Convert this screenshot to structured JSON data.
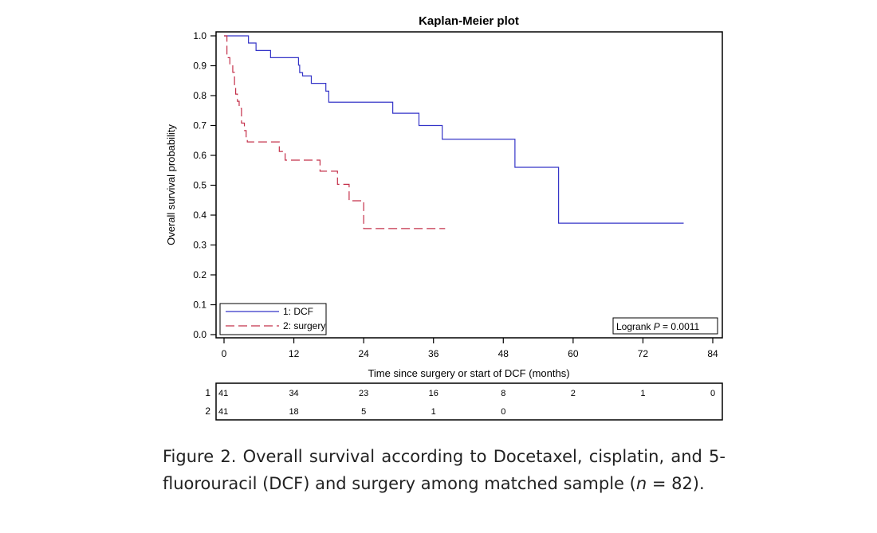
{
  "chart_data": {
    "type": "line",
    "title": "Kaplan-Meier plot",
    "xlabel": "Time since surgery or start of DCF (months)",
    "ylabel": "Overall survival probability",
    "xlim": [
      0,
      84
    ],
    "ylim": [
      0,
      1.0
    ],
    "x_ticks": [
      "0",
      "12",
      "24",
      "36",
      "48",
      "60",
      "72",
      "84"
    ],
    "x_tick_values": [
      0,
      12,
      24,
      36,
      48,
      60,
      72,
      84
    ],
    "y_ticks": [
      "0.0",
      "0.1",
      "0.2",
      "0.3",
      "0.4",
      "0.5",
      "0.6",
      "0.7",
      "0.8",
      "0.9",
      "1.0"
    ],
    "y_tick_values": [
      0,
      0.1,
      0.2,
      0.3,
      0.4,
      0.5,
      0.6,
      0.7,
      0.8,
      0.9,
      1.0
    ],
    "legend_position": "bottom-left",
    "series": [
      {
        "name": "1: DCF",
        "color": "#3535c8",
        "dash": "solid",
        "steps": [
          [
            0,
            1.0
          ],
          [
            4.2,
            0.976
          ],
          [
            5.5,
            0.951
          ],
          [
            8.0,
            0.927
          ],
          [
            12.8,
            0.902
          ],
          [
            13.0,
            0.877
          ],
          [
            13.5,
            0.866
          ],
          [
            15.0,
            0.841
          ],
          [
            17.5,
            0.815
          ],
          [
            18.0,
            0.778
          ],
          [
            29.0,
            0.741
          ],
          [
            33.5,
            0.7
          ],
          [
            37.5,
            0.654
          ],
          [
            50.0,
            0.56
          ],
          [
            57.5,
            0.373
          ]
        ],
        "end_x": 79.0
      },
      {
        "name": "2: surgery",
        "color": "#c4304a",
        "dash": "dashed",
        "steps": [
          [
            0,
            1.0
          ],
          [
            0.5,
            0.927
          ],
          [
            1.0,
            0.902
          ],
          [
            1.5,
            0.878
          ],
          [
            1.8,
            0.829
          ],
          [
            2.0,
            0.805
          ],
          [
            2.3,
            0.781
          ],
          [
            2.6,
            0.757
          ],
          [
            3.0,
            0.708
          ],
          [
            3.5,
            0.683
          ],
          [
            3.8,
            0.66
          ],
          [
            4.0,
            0.645
          ],
          [
            9.5,
            0.613
          ],
          [
            10.5,
            0.584
          ],
          [
            16.5,
            0.547
          ],
          [
            19.5,
            0.503
          ],
          [
            21.5,
            0.448
          ],
          [
            24.0,
            0.355
          ]
        ],
        "end_x": 38.0
      }
    ],
    "annotation": {
      "prefix": "Logrank ",
      "italic": "P",
      "suffix": " = 0.0011"
    },
    "risk_table": {
      "times": [
        0,
        12,
        24,
        36,
        48,
        60,
        72,
        84
      ],
      "rows": [
        {
          "label": "1",
          "counts": [
            "41",
            "34",
            "23",
            "16",
            "8",
            "2",
            "1",
            "0"
          ]
        },
        {
          "label": "2",
          "counts": [
            "41",
            "18",
            "5",
            "1",
            "0",
            null,
            null,
            null
          ]
        }
      ]
    }
  },
  "caption": {
    "label": "Figure 2.",
    "text_1": " Overall survival according to Docetaxel, cisplatin, and 5-fluorouracil (DCF) and surgery among matched sample (",
    "n_symbol": "n",
    "text_2": " = 82)."
  }
}
